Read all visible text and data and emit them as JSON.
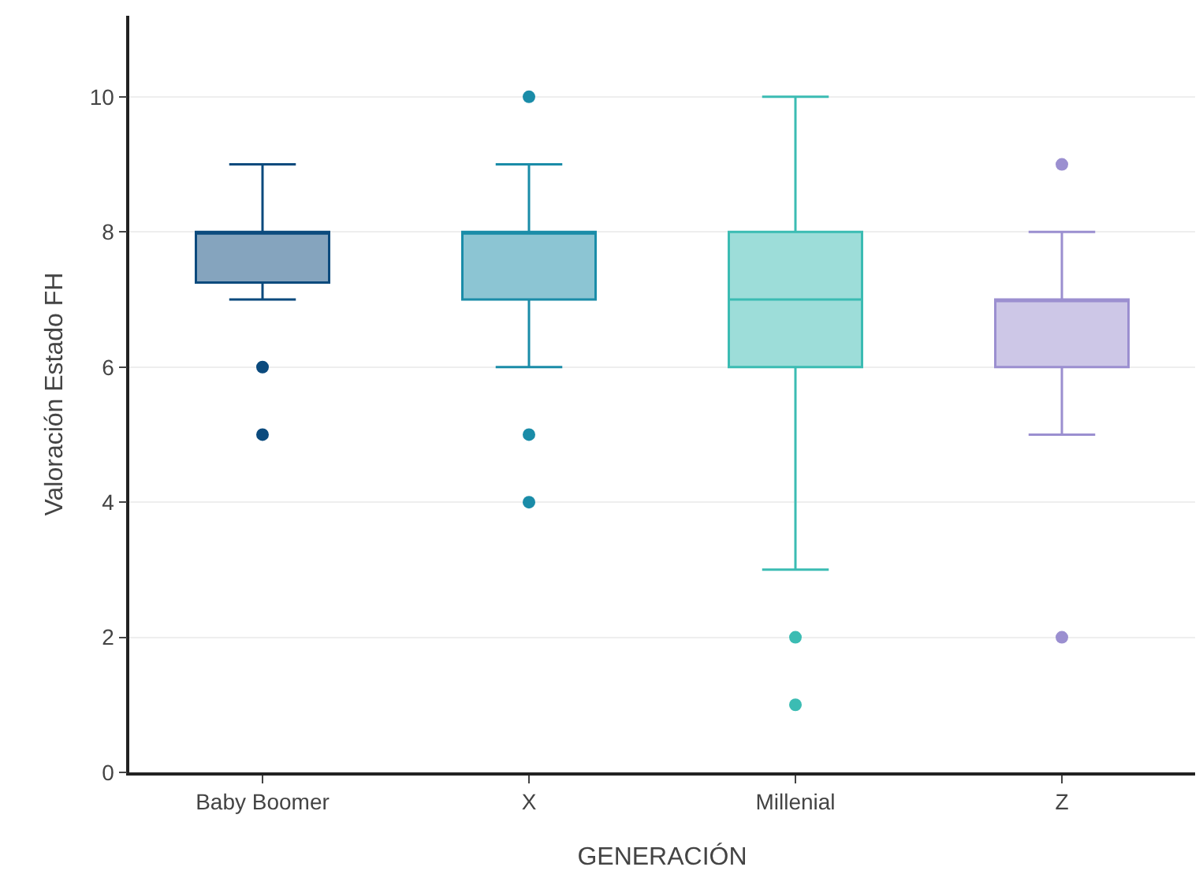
{
  "chart_data": {
    "type": "box",
    "xlabel": "GENERACIÓN",
    "ylabel": "Valoración Estado FH",
    "categories": [
      "Baby Boomer",
      "X",
      "Millenial",
      "Z"
    ],
    "colors": [
      "#0b4a7d",
      "#1a8ca8",
      "#3bbcb3",
      "#9b8fd0"
    ],
    "boxes": [
      {
        "low": 7,
        "q1": 7.25,
        "median": 8,
        "q3": 8,
        "high": 9,
        "outliers": [
          6,
          5
        ]
      },
      {
        "low": 6,
        "q1": 7,
        "median": 8,
        "q3": 8,
        "high": 9,
        "outliers": [
          10,
          5,
          4
        ]
      },
      {
        "low": 3,
        "q1": 6,
        "median": 7,
        "q3": 8,
        "high": 10,
        "outliers": [
          2,
          1
        ]
      },
      {
        "low": 5,
        "q1": 6,
        "median": 7,
        "q3": 7,
        "high": 8,
        "outliers": [
          9,
          2
        ]
      }
    ],
    "ylim": [
      0,
      11.2
    ],
    "yticks": [
      0,
      2,
      4,
      6,
      8,
      10
    ],
    "grid": "y"
  }
}
